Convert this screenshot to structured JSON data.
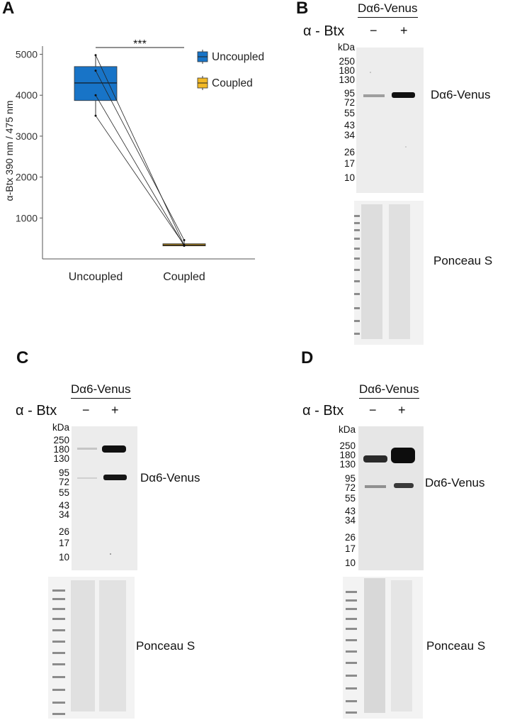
{
  "panels": {
    "A": {
      "letter": "A",
      "chart_data": {
        "type": "box",
        "categories": [
          "Uncoupled",
          "Coupled"
        ],
        "ylabel": "α-Btx  390 nm / 475 nm",
        "ylim": [
          0,
          5200
        ],
        "yticks": [
          1000,
          2000,
          3000,
          4000,
          5000
        ],
        "boxes": [
          {
            "name": "Uncoupled",
            "min": 3500,
            "q1": 3870,
            "median": 4300,
            "q3": 4700,
            "max": 4980,
            "color": "#1874c7"
          },
          {
            "name": "Coupled",
            "min": 320,
            "q1": 320,
            "median": 340,
            "q3": 370,
            "max": 460,
            "color": "#f2b927"
          }
        ],
        "paired_points": [
          {
            "uncoupled": 4980,
            "coupled": 330
          },
          {
            "uncoupled": 4600,
            "coupled": 460
          },
          {
            "uncoupled": 4000,
            "coupled": 320
          },
          {
            "uncoupled": 3500,
            "coupled": 340
          }
        ],
        "significance": "***",
        "legend": [
          {
            "label": "Uncoupled",
            "color": "#1874c7"
          },
          {
            "label": "Coupled",
            "color": "#f2b927"
          }
        ],
        "legend_position": "right",
        "grid": false
      }
    },
    "B": {
      "letter": "B",
      "title": "Dα6-Venus",
      "treatment": "α - Btx",
      "minus": "−",
      "plus": "+",
      "kda": "kDa",
      "markers": [
        "250",
        "180",
        "130",
        "95",
        "72",
        "55",
        "43",
        "34",
        "26",
        "17",
        "10"
      ],
      "band_label": "Dα6-Venus",
      "stain_label": "Ponceau S"
    },
    "C": {
      "letter": "C",
      "title": "Dα6-Venus",
      "treatment": "α - Btx",
      "minus": "−",
      "plus": "+",
      "kda": "kDa",
      "markers": [
        "250",
        "180",
        "130",
        "95",
        "72",
        "55",
        "43",
        "34",
        "26",
        "17",
        "10"
      ],
      "band_label": "Dα6-Venus",
      "stain_label": "Ponceau S"
    },
    "D": {
      "letter": "D",
      "title": "Dα6-Venus",
      "treatment": "α - Btx",
      "minus": "−",
      "plus": "+",
      "kda": "kDa",
      "markers": [
        "250",
        "180",
        "130",
        "95",
        "72",
        "55",
        "43",
        "34",
        "26",
        "17",
        "10"
      ],
      "band_label": "Dα6-Venus",
      "stain_label": "Ponceau S"
    }
  }
}
